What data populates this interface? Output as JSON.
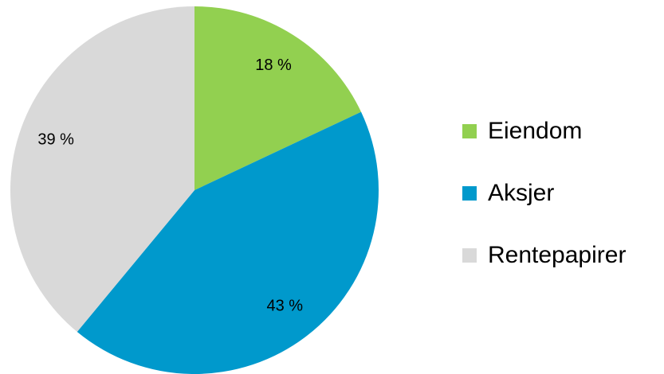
{
  "chart_data": {
    "type": "pie",
    "categories": [
      "Eiendom",
      "Aksjer",
      "Rentepapirer"
    ],
    "values": [
      18,
      43,
      39
    ],
    "value_labels": [
      "18 %",
      "43 %",
      "39 %"
    ],
    "colors": [
      "#92d050",
      "#0099cc",
      "#d9d9d9"
    ],
    "legend": "right"
  }
}
